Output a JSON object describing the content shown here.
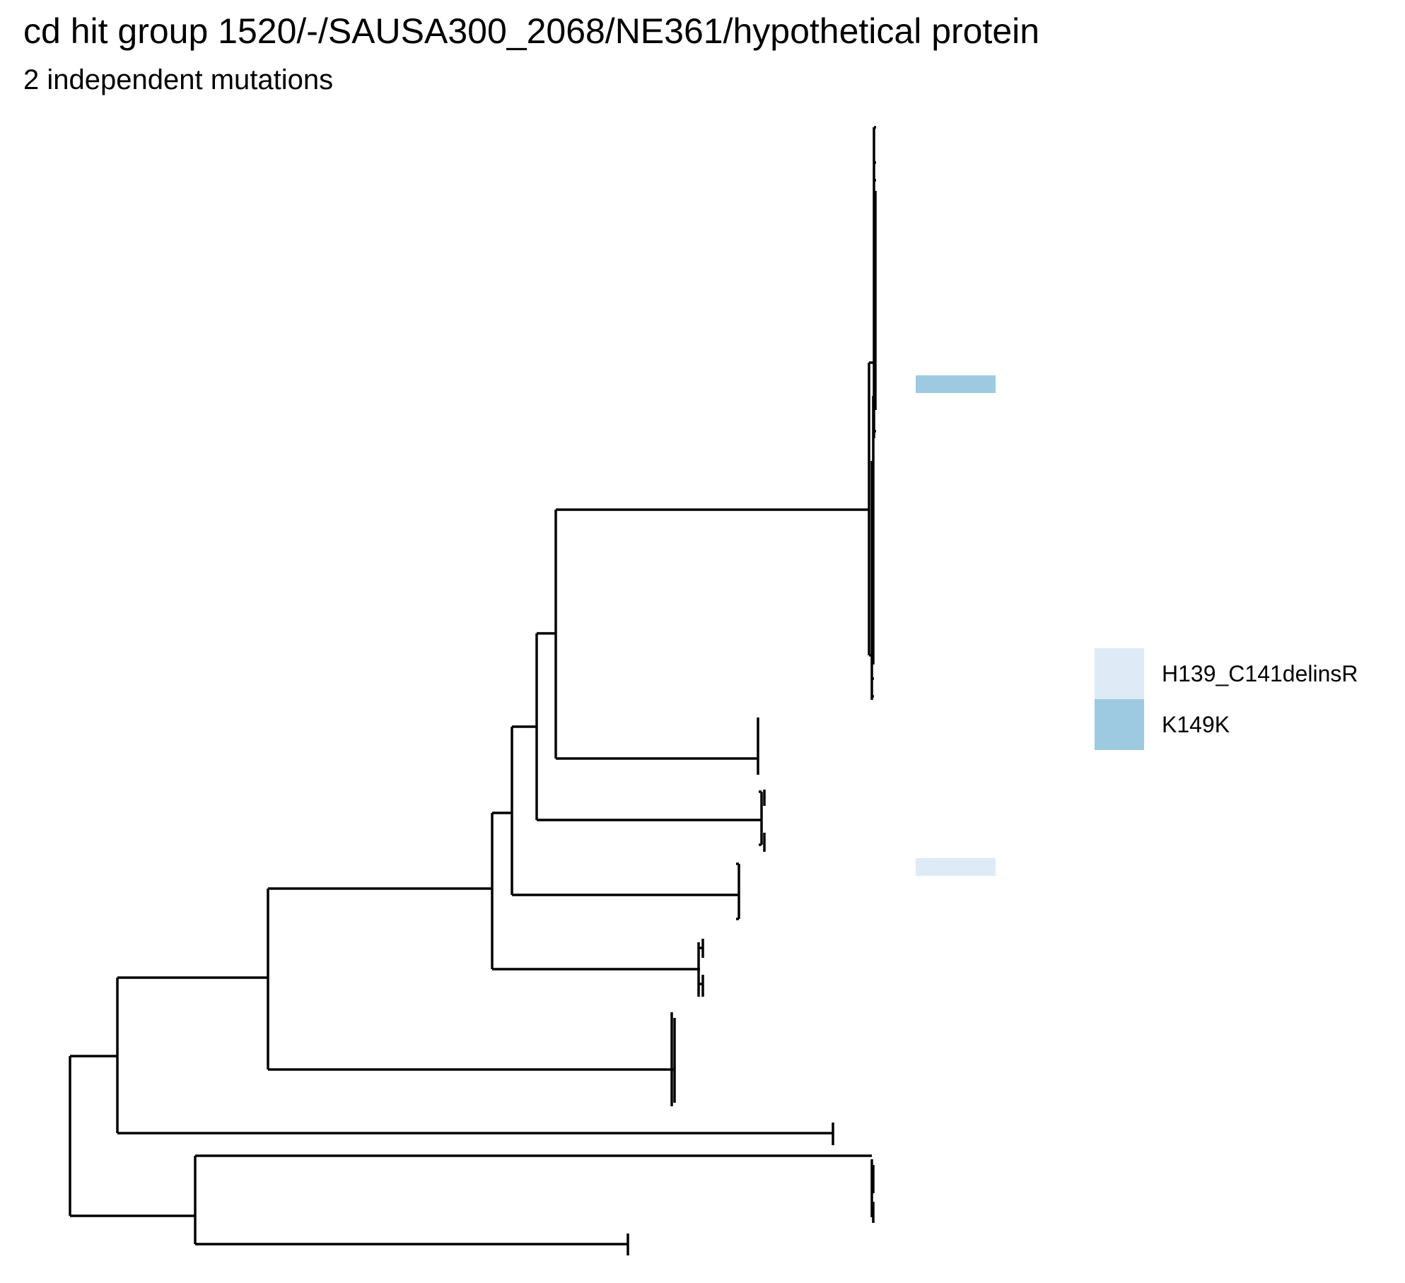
{
  "title": "cd hit group 1520/-/SAUSA300_2068/NE361/hypothetical protein",
  "subtitle": "2 independent mutations",
  "legend": {
    "items": [
      {
        "label": "H139_C141delinsR",
        "color": "#deebf7"
      },
      {
        "label": "K149K",
        "color": "#9ecae1"
      }
    ]
  },
  "tree": {
    "branch_color": "#000000",
    "mutation_marks": [
      {
        "mutation": "K149K",
        "color": "#9ecae1"
      },
      {
        "mutation": "H139_C141delinsR",
        "color": "#deebf7"
      }
    ]
  }
}
